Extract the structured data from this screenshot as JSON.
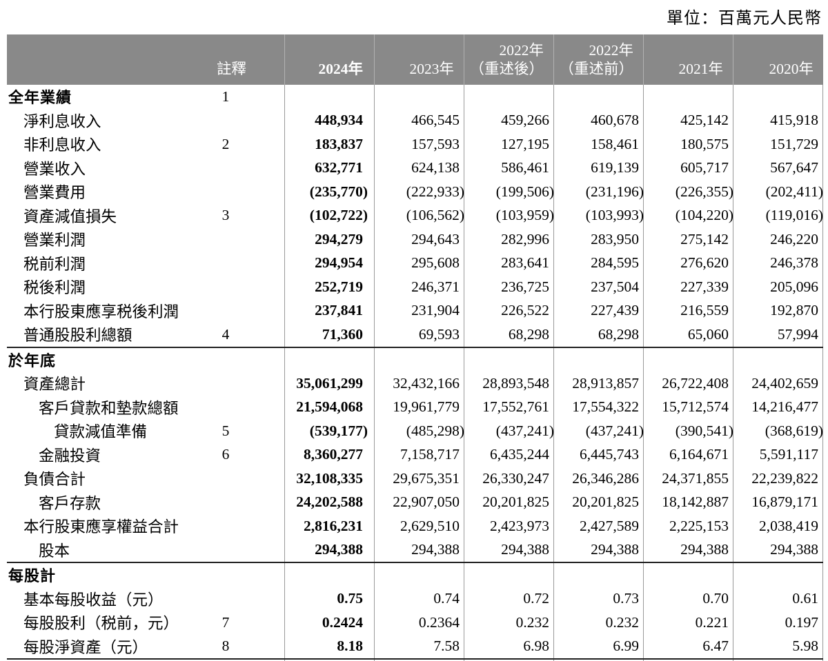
{
  "unit_label": "單位：百萬元人民幣",
  "colors": {
    "header_background": "#898989",
    "header_text": "#ffffff",
    "column_divider": "#999999",
    "section_rule": "#1f1f1f",
    "body_text": "#000000"
  },
  "table": {
    "header": {
      "note_column": "註釋",
      "year_columns": [
        [
          "2024年"
        ],
        [
          "2023年"
        ],
        [
          "2022年",
          "（重述後）"
        ],
        [
          "2022年",
          "（重述前）"
        ],
        [
          "2021年"
        ],
        [
          "2020年"
        ]
      ]
    },
    "rows": [
      {
        "label": "全年業績",
        "note": "1",
        "indent": 0,
        "section": true,
        "values": [
          "",
          "",
          "",
          "",
          "",
          ""
        ]
      },
      {
        "label": "淨利息收入",
        "note": "",
        "indent": 1,
        "values": [
          "448,934",
          "466,545",
          "459,266",
          "460,678",
          "425,142",
          "415,918"
        ]
      },
      {
        "label": "非利息收入",
        "note": "2",
        "indent": 1,
        "values": [
          "183,837",
          "157,593",
          "127,195",
          "158,461",
          "180,575",
          "151,729"
        ]
      },
      {
        "label": "營業收入",
        "note": "",
        "indent": 1,
        "values": [
          "632,771",
          "624,138",
          "586,461",
          "619,139",
          "605,717",
          "567,647"
        ]
      },
      {
        "label": "營業費用",
        "note": "",
        "indent": 1,
        "values": [
          "(235,770)",
          "(222,933)",
          "(199,506)",
          "(231,196)",
          "(226,355)",
          "(202,411)"
        ]
      },
      {
        "label": "資產減值損失",
        "note": "3",
        "indent": 1,
        "values": [
          "(102,722)",
          "(106,562)",
          "(103,959)",
          "(103,993)",
          "(104,220)",
          "(119,016)"
        ]
      },
      {
        "label": "營業利潤",
        "note": "",
        "indent": 1,
        "values": [
          "294,279",
          "294,643",
          "282,996",
          "283,950",
          "275,142",
          "246,220"
        ]
      },
      {
        "label": "税前利潤",
        "note": "",
        "indent": 1,
        "values": [
          "294,954",
          "295,608",
          "283,641",
          "284,595",
          "276,620",
          "246,378"
        ]
      },
      {
        "label": "税後利潤",
        "note": "",
        "indent": 1,
        "values": [
          "252,719",
          "246,371",
          "236,725",
          "237,504",
          "227,339",
          "205,096"
        ]
      },
      {
        "label": "本行股東應享税後利潤",
        "note": "",
        "indent": 1,
        "values": [
          "237,841",
          "231,904",
          "226,522",
          "227,439",
          "216,559",
          "192,870"
        ]
      },
      {
        "label": "普通股股利總額",
        "note": "4",
        "indent": 1,
        "values": [
          "71,360",
          "69,593",
          "68,298",
          "68,298",
          "65,060",
          "57,994"
        ]
      },
      {
        "label": "於年底",
        "note": "",
        "indent": 0,
        "section": true,
        "rule_above": true,
        "values": [
          "",
          "",
          "",
          "",
          "",
          ""
        ]
      },
      {
        "label": "資產總計",
        "note": "",
        "indent": 1,
        "values": [
          "35,061,299",
          "32,432,166",
          "28,893,548",
          "28,913,857",
          "26,722,408",
          "24,402,659"
        ]
      },
      {
        "label": "客戶貸款和墊款總額",
        "note": "",
        "indent": 2,
        "values": [
          "21,594,068",
          "19,961,779",
          "17,552,761",
          "17,554,322",
          "15,712,574",
          "14,216,477"
        ]
      },
      {
        "label": "貸款減值準備",
        "note": "5",
        "indent": 3,
        "values": [
          "(539,177)",
          "(485,298)",
          "(437,241)",
          "(437,241)",
          "(390,541)",
          "(368,619)"
        ]
      },
      {
        "label": "金融投資",
        "note": "6",
        "indent": 2,
        "values": [
          "8,360,277",
          "7,158,717",
          "6,435,244",
          "6,445,743",
          "6,164,671",
          "5,591,117"
        ]
      },
      {
        "label": "負債合計",
        "note": "",
        "indent": 1,
        "values": [
          "32,108,335",
          "29,675,351",
          "26,330,247",
          "26,346,286",
          "24,371,855",
          "22,239,822"
        ]
      },
      {
        "label": "客戶存款",
        "note": "",
        "indent": 2,
        "values": [
          "24,202,588",
          "22,907,050",
          "20,201,825",
          "20,201,825",
          "18,142,887",
          "16,879,171"
        ]
      },
      {
        "label": "本行股東應享權益合計",
        "note": "",
        "indent": 1,
        "values": [
          "2,816,231",
          "2,629,510",
          "2,423,973",
          "2,427,589",
          "2,225,153",
          "2,038,419"
        ]
      },
      {
        "label": "股本",
        "note": "",
        "indent": 2,
        "values": [
          "294,388",
          "294,388",
          "294,388",
          "294,388",
          "294,388",
          "294,388"
        ]
      },
      {
        "label": "每股計",
        "note": "",
        "indent": 0,
        "section": true,
        "rule_above": true,
        "values": [
          "",
          "",
          "",
          "",
          "",
          ""
        ]
      },
      {
        "label": "基本每股收益（元）",
        "note": "",
        "indent": 1,
        "values": [
          "0.75",
          "0.74",
          "0.72",
          "0.73",
          "0.70",
          "0.61"
        ]
      },
      {
        "label": "每股股利（税前，元）",
        "note": "7",
        "indent": 1,
        "values": [
          "0.2424",
          "0.2364",
          "0.232",
          "0.232",
          "0.221",
          "0.197"
        ]
      },
      {
        "label": "每股淨資產（元）",
        "note": "8",
        "indent": 1,
        "values": [
          "8.18",
          "7.58",
          "6.98",
          "6.99",
          "6.47",
          "5.98"
        ]
      }
    ]
  }
}
